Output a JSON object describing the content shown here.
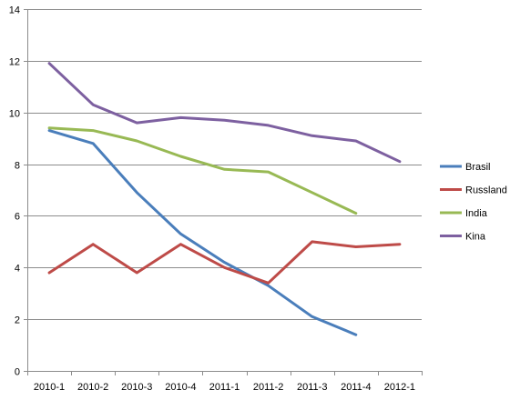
{
  "chart_data": {
    "type": "line",
    "categories": [
      "2010-1",
      "2010-2",
      "2010-3",
      "2010-4",
      "2011-1",
      "2011-2",
      "2011-3",
      "2011-4",
      "2012-1"
    ],
    "ylim": [
      0,
      14
    ],
    "yticks": [
      0,
      2,
      4,
      6,
      8,
      10,
      12,
      14
    ],
    "grid": true,
    "legend": "right",
    "series": [
      {
        "name": "Brasil",
        "color": "#4a7ebb",
        "values": [
          9.3,
          8.8,
          6.9,
          5.3,
          4.2,
          3.3,
          2.1,
          1.4,
          null
        ]
      },
      {
        "name": "Russland",
        "color": "#be4b48",
        "values": [
          3.8,
          4.9,
          3.8,
          4.9,
          4.0,
          3.4,
          5.0,
          4.8,
          4.9
        ]
      },
      {
        "name": "India",
        "color": "#98b954",
        "values": [
          9.4,
          9.3,
          8.9,
          8.3,
          7.8,
          7.7,
          6.9,
          6.1,
          null
        ]
      },
      {
        "name": "Kina",
        "color": "#7d60a0",
        "values": [
          11.9,
          10.3,
          9.6,
          9.8,
          9.7,
          9.5,
          9.1,
          8.9,
          8.1
        ]
      }
    ]
  }
}
